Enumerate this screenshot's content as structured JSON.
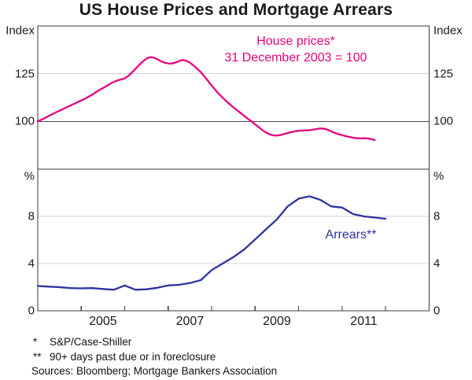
{
  "title": "US House Prices and Mortgage Arrears",
  "colors": {
    "house_prices": "#E5007E",
    "arrears": "#2D33A2",
    "grid": "#D4D4D4",
    "axis": "#3A3A3A",
    "baseline": "#4A4A4A",
    "text": "#1A1A1A"
  },
  "footnotes": [
    {
      "symbol": "*",
      "text": "S&P/Case-Shiller"
    },
    {
      "symbol": "**",
      "text": "90+ days past due or in foreclosure"
    }
  ],
  "sources": "Sources: Bloomberg; Mortgage Bankers Association",
  "chart_data": {
    "type": "line",
    "title": "US House Prices and Mortgage Arrears",
    "grid": true,
    "legend_position": "in-plot-text-labels",
    "x_axis": {
      "domain_years": [
        2004,
        2013
      ],
      "year_ticks": [
        2005,
        2006,
        2007,
        2008,
        2009,
        2010,
        2011,
        2012
      ],
      "tick_labels": [
        {
          "text": "2005",
          "center_year": 2005.5
        },
        {
          "text": "2007",
          "center_year": 2007.5
        },
        {
          "text": "2009",
          "center_year": 2009.5
        },
        {
          "text": "2011",
          "center_year": 2011.5
        }
      ]
    },
    "panels": [
      {
        "id": "house-prices",
        "unit": "Index",
        "ylim": [
          75,
          150
        ],
        "gridlines": [
          125
        ],
        "baseline": 100,
        "ytick_labels": [
          "125",
          "100"
        ],
        "series": {
          "label": "House prices*",
          "sublabel": "31 December 2003 = 100",
          "color": "#E5007E",
          "frequency": "monthly",
          "start": "2003-12",
          "end": "2011-09",
          "values": [
            100.0,
            100.9,
            101.8,
            102.8,
            103.8,
            104.7,
            105.6,
            106.5,
            107.4,
            108.3,
            109.2,
            110.1,
            111.0,
            111.9,
            112.9,
            114.0,
            115.2,
            116.4,
            117.5,
            118.6,
            119.7,
            120.7,
            121.4,
            122.0,
            122.5,
            123.8,
            125.6,
            127.6,
            129.6,
            131.4,
            132.9,
            133.7,
            133.4,
            132.6,
            131.5,
            130.8,
            130.4,
            130.3,
            130.8,
            131.6,
            132.2,
            131.8,
            130.8,
            129.3,
            127.6,
            125.8,
            123.6,
            121.2,
            118.8,
            116.5,
            114.4,
            112.5,
            110.7,
            109.0,
            107.4,
            105.9,
            104.4,
            102.9,
            101.4,
            100.0,
            98.5,
            97.0,
            95.5,
            94.2,
            93.2,
            92.7,
            92.6,
            92.9,
            93.4,
            93.9,
            94.4,
            94.8,
            95.1,
            95.2,
            95.3,
            95.4,
            95.7,
            96.0,
            96.3,
            96.2,
            95.7,
            94.8,
            94.0,
            93.3,
            92.8,
            92.3,
            91.9,
            91.5,
            91.2,
            91.1,
            91.2,
            91.1,
            90.8,
            90.2
          ]
        }
      },
      {
        "id": "arrears",
        "unit": "%",
        "ylim": [
          0,
          12
        ],
        "gridlines": [
          4,
          8
        ],
        "ytick_labels": [
          "8",
          "4",
          "0"
        ],
        "series": {
          "label": "Arrears**",
          "color": "#2D33A2",
          "frequency": "quarterly",
          "start": "2003-Q4",
          "end": "2011-Q4",
          "values": [
            2.1,
            2.05,
            2.0,
            1.92,
            1.9,
            1.92,
            1.85,
            1.78,
            2.15,
            1.78,
            1.82,
            1.95,
            2.15,
            2.2,
            2.35,
            2.6,
            3.45,
            4.0,
            4.55,
            5.2,
            6.05,
            6.9,
            7.75,
            8.85,
            9.5,
            9.7,
            9.4,
            8.85,
            8.75,
            8.2,
            8.0,
            7.9,
            7.8
          ]
        }
      }
    ]
  }
}
